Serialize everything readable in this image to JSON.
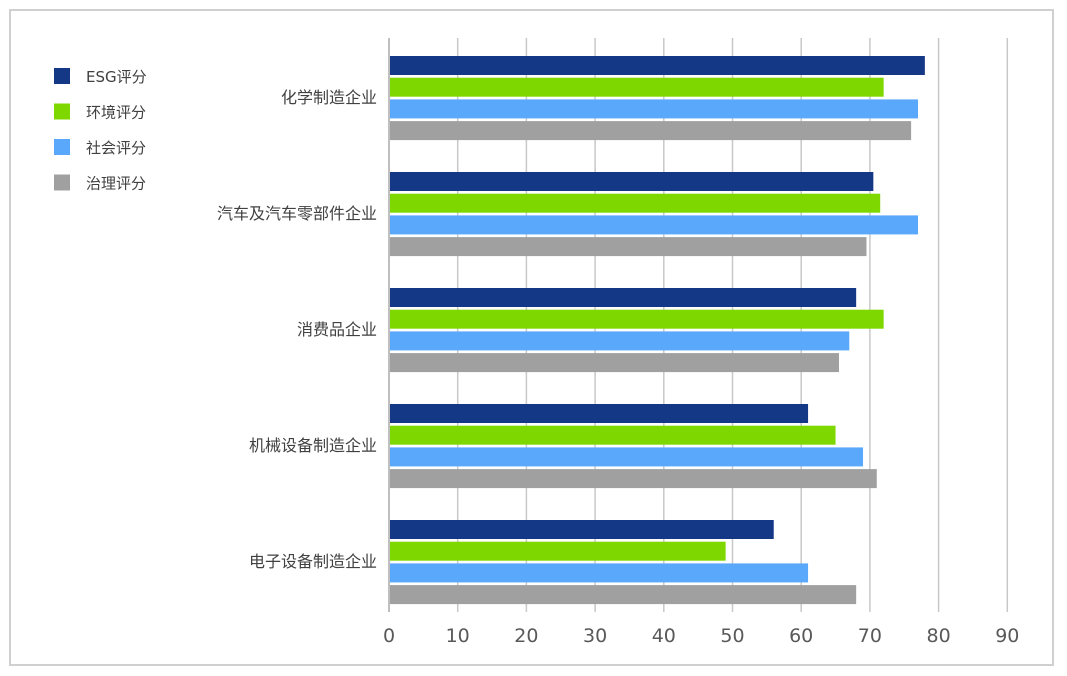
{
  "chart_data": {
    "type": "bar",
    "orientation": "horizontal",
    "categories": [
      "化学制造企业",
      "汽车及汽车零部件企业",
      "消费品企业",
      "机械设备制造企业",
      "电子设备制造企业"
    ],
    "series": [
      {
        "name": "ESG评分",
        "color": "#143886",
        "values": [
          78,
          70.5,
          68,
          61,
          56
        ]
      },
      {
        "name": "环境评分",
        "color": "#7ed800",
        "values": [
          72,
          71.5,
          72,
          65,
          49
        ]
      },
      {
        "name": "社会评分",
        "color": "#5aa8fb",
        "values": [
          77,
          77,
          67,
          69,
          61
        ]
      },
      {
        "name": "治理评分",
        "color": "#a0a0a0",
        "values": [
          76,
          69.5,
          65.5,
          71,
          68
        ]
      }
    ],
    "xlim": [
      0,
      90
    ],
    "xticks": [
      0,
      10,
      20,
      30,
      40,
      50,
      60,
      70,
      80,
      90
    ],
    "grid": true,
    "legend": "top-left"
  }
}
